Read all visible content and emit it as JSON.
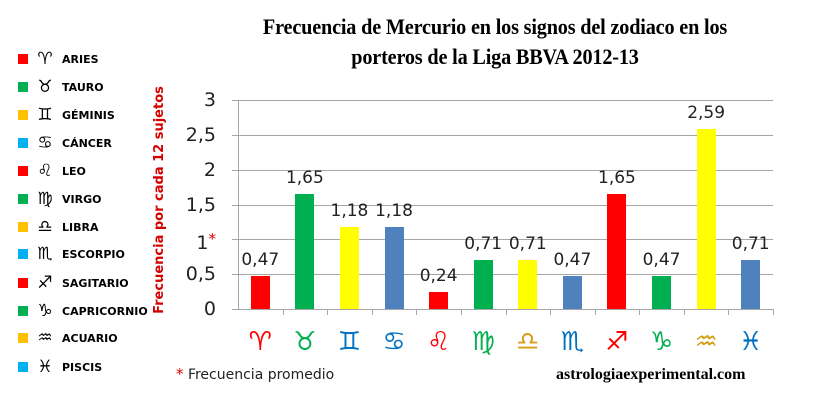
{
  "title": {
    "line1": "Frecuencia de Mercurio en los signos del zodiaco en los",
    "line2": "porteros de la Liga BBVA 2012-13"
  },
  "y_axis": {
    "title": "Frecuencia por cada 12 sujetos",
    "ticks": [
      "0",
      "0,5",
      "1",
      "1,5",
      "2",
      "2,5",
      "3"
    ],
    "marked_tick_suffix": "*"
  },
  "legend": [
    {
      "label": "ARIES",
      "symbol": "♈",
      "icon": "aries-icon",
      "color": "#ff0000"
    },
    {
      "label": "TAURO",
      "symbol": "♉",
      "icon": "taurus-icon",
      "color": "#00b050"
    },
    {
      "label": "GÉMINIS",
      "symbol": "♊",
      "icon": "gemini-icon",
      "color": "#ffc000"
    },
    {
      "label": "CÁNCER",
      "symbol": "♋",
      "icon": "cancer-icon",
      "color": "#00b0f0"
    },
    {
      "label": "LEO",
      "symbol": "♌",
      "icon": "leo-icon",
      "color": "#ff0000"
    },
    {
      "label": "VIRGO",
      "symbol": "♍",
      "icon": "virgo-icon",
      "color": "#00b050"
    },
    {
      "label": "LIBRA",
      "symbol": "♎",
      "icon": "libra-icon",
      "color": "#ffc000"
    },
    {
      "label": "ESCORPIO",
      "symbol": "♏",
      "icon": "scorpio-icon",
      "color": "#00b0f0"
    },
    {
      "label": "SAGITARIO",
      "symbol": "♐",
      "icon": "sagittarius-icon",
      "color": "#ff0000"
    },
    {
      "label": "CAPRICORNIO",
      "symbol": "♑",
      "icon": "capricorn-icon",
      "color": "#00b050"
    },
    {
      "label": "ACUARIO",
      "symbol": "♒",
      "icon": "aquarius-icon",
      "color": "#ffc000"
    },
    {
      "label": "PISCIS",
      "symbol": "♓",
      "icon": "pisces-icon",
      "color": "#00b0f0"
    }
  ],
  "x_symbols": [
    {
      "symbol": "♈",
      "color": "#ff0000"
    },
    {
      "symbol": "♉",
      "color": "#00b050"
    },
    {
      "symbol": "♊",
      "color": "#0070c0"
    },
    {
      "symbol": "♋",
      "color": "#0070c0"
    },
    {
      "symbol": "♌",
      "color": "#ff0000"
    },
    {
      "symbol": "♍",
      "color": "#00b050"
    },
    {
      "symbol": "♎",
      "color": "#d4a017"
    },
    {
      "symbol": "♏",
      "color": "#0070c0"
    },
    {
      "symbol": "♐",
      "color": "#ff0000"
    },
    {
      "symbol": "♑",
      "color": "#00b050"
    },
    {
      "symbol": "♒",
      "color": "#d4a017"
    },
    {
      "symbol": "♓",
      "color": "#0070c0"
    }
  ],
  "footnote": {
    "star": "*",
    "text": "Frecuencia promedio"
  },
  "site": "astrologiaexperimental.com",
  "chart_data": {
    "type": "bar",
    "title": "Frecuencia de Mercurio en los signos del zodiaco en los porteros de la Liga BBVA 2012-13",
    "xlabel": "",
    "ylabel": "Frecuencia por cada 12 sujetos",
    "ylim": [
      0,
      3
    ],
    "yticks": [
      0,
      0.5,
      1,
      1.5,
      2,
      2.5,
      3
    ],
    "grid": true,
    "legend_position": "left",
    "categories": [
      "Aries",
      "Tauro",
      "Géminis",
      "Cáncer",
      "Leo",
      "Virgo",
      "Libra",
      "Escorpio",
      "Sagitario",
      "Capricornio",
      "Acuario",
      "Piscis"
    ],
    "values": [
      0.47,
      1.65,
      1.18,
      1.18,
      0.24,
      0.71,
      0.71,
      0.47,
      1.65,
      0.47,
      2.59,
      0.71
    ],
    "value_labels": [
      "0,47",
      "1,65",
      "1,18",
      "1,18",
      "0,24",
      "0,71",
      "0,71",
      "0,47",
      "1,65",
      "0,47",
      "2,59",
      "0,71"
    ],
    "bar_colors": [
      "#ff0000",
      "#00b050",
      "#ffff00",
      "#4f81bd",
      "#ff0000",
      "#00b050",
      "#ffff00",
      "#4f81bd",
      "#ff0000",
      "#00b050",
      "#ffff00",
      "#4f81bd"
    ],
    "annotations": [
      "1* = Frecuencia promedio"
    ]
  }
}
